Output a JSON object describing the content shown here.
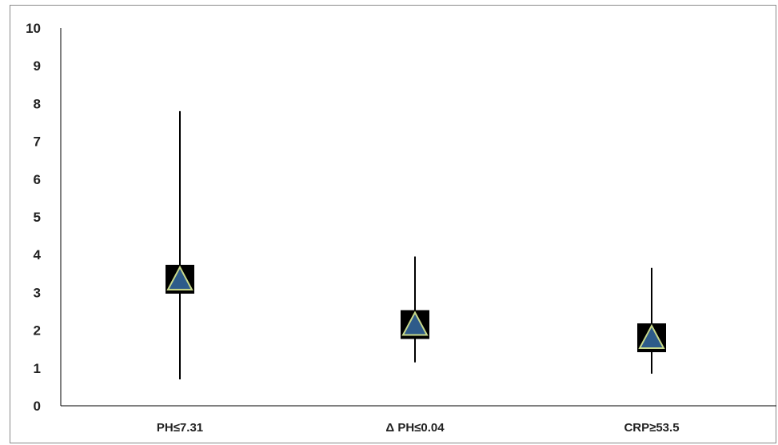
{
  "chart_data": {
    "type": "scatter",
    "chart_kind": "high-low-point (estimate with range)",
    "title": "",
    "xlabel": "",
    "ylabel": "",
    "ylim": [
      0,
      10
    ],
    "y_ticks": [
      "0",
      "1",
      "2",
      "3",
      "4",
      "5",
      "6",
      "7",
      "8",
      "9",
      "10"
    ],
    "grid": false,
    "legend": "none",
    "categories": [
      "PH≤7.31",
      "Δ PH≤0.04",
      "CRP≥53.5"
    ],
    "series": [
      {
        "estimate": [
          3.35,
          2.15,
          1.8
        ],
        "low": [
          0.7,
          1.15,
          0.85
        ],
        "high": [
          7.8,
          3.95,
          3.65
        ]
      }
    ],
    "colors": {
      "line": "#000000",
      "box": "#000000",
      "triangle_fill": "#2e5b8a",
      "triangle_stroke": "#c8d88a",
      "axis": "#000000"
    },
    "marker_icons": [
      "black-square",
      "blue-triangle"
    ]
  }
}
